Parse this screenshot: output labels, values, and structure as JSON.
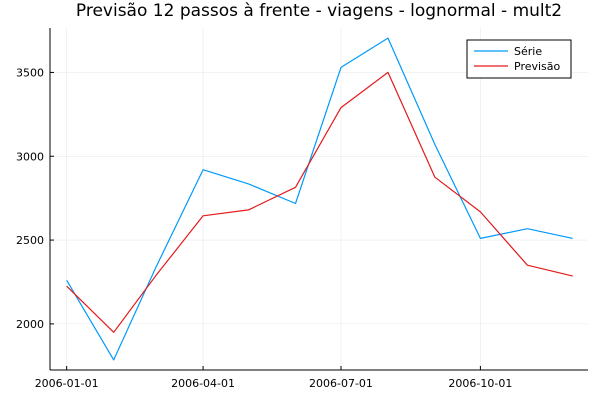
{
  "chart_data": {
    "type": "line",
    "title": "Previsão 12 passos à frente - viagens - lognormal - mult2",
    "xlabel": "",
    "ylabel": "",
    "x": [
      "2006-01-01",
      "2006-02-01",
      "2006-03-01",
      "2006-04-01",
      "2006-05-01",
      "2006-06-01",
      "2006-07-01",
      "2006-08-01",
      "2006-09-01",
      "2006-10-01",
      "2006-11-01",
      "2006-12-01"
    ],
    "x_ticks": [
      "2006-01-01",
      "2006-04-01",
      "2006-07-01",
      "2006-10-01"
    ],
    "y_ticks": [
      2000,
      2500,
      3000,
      3500
    ],
    "ylim": [
      1725,
      3765
    ],
    "xlim": [
      "2005-12-21",
      "2006-12-11"
    ],
    "grid": true,
    "legend_position": "top-right",
    "series": [
      {
        "name": "Série",
        "color": "#009AFA",
        "values": [
          2260,
          1785,
          2340,
          2920,
          2835,
          2718,
          3530,
          3705,
          3070,
          2510,
          2568,
          2510
        ]
      },
      {
        "name": "Previsão",
        "color": "#E31A1C",
        "values": [
          2225,
          1950,
          2290,
          2645,
          2680,
          2815,
          3290,
          3500,
          2875,
          2668,
          2350,
          2285
        ]
      }
    ]
  }
}
